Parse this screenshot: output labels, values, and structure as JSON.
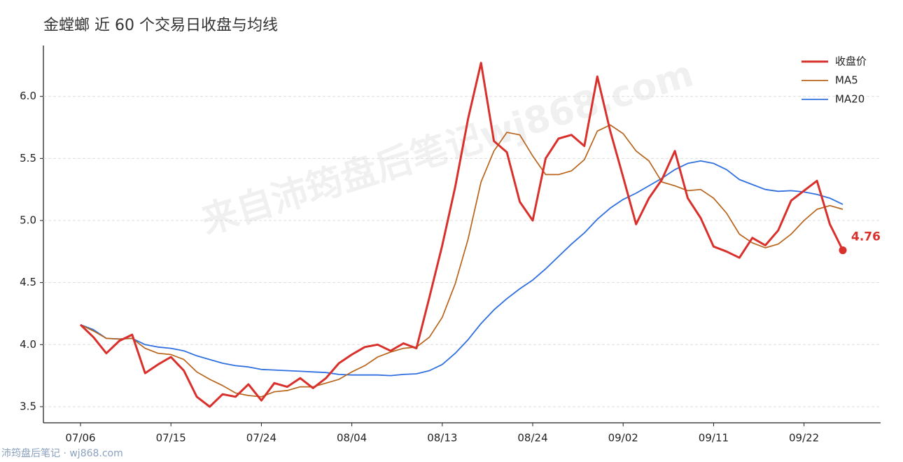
{
  "chart_data": {
    "type": "line",
    "title": "金螳螂 近 60 个交易日收盘与均线",
    "watermark": "来自沛筠盘后笔记wj868.com",
    "footer": "沛筠盘后笔记 · wj868.com",
    "categories": [
      "07/06",
      null,
      null,
      null,
      null,
      null,
      null,
      "07/15",
      null,
      null,
      null,
      null,
      null,
      null,
      "07/24",
      null,
      null,
      null,
      null,
      null,
      null,
      "08/04",
      null,
      null,
      null,
      null,
      null,
      null,
      "08/13",
      null,
      null,
      null,
      null,
      null,
      null,
      "08/24",
      null,
      null,
      null,
      null,
      null,
      null,
      "09/02",
      null,
      null,
      null,
      null,
      null,
      null,
      "09/11",
      null,
      null,
      null,
      null,
      null,
      null,
      "09/22",
      null,
      null,
      null
    ],
    "series": [
      {
        "name": "收盘价",
        "color": "#d9302c",
        "values": [
          4.16,
          4.06,
          3.93,
          4.03,
          4.08,
          3.77,
          3.84,
          3.9,
          3.79,
          3.58,
          3.5,
          3.6,
          3.58,
          3.68,
          3.55,
          3.69,
          3.66,
          3.73,
          3.65,
          3.73,
          3.85,
          3.92,
          3.98,
          4.0,
          3.95,
          4.01,
          3.97,
          4.38,
          4.8,
          5.27,
          5.82,
          6.27,
          5.64,
          5.55,
          5.15,
          5.0,
          5.5,
          5.66,
          5.69,
          5.6,
          6.16,
          5.72,
          5.35,
          4.97,
          5.18,
          5.33,
          5.56,
          5.18,
          5.02,
          4.79,
          4.75,
          4.7,
          4.86,
          4.8,
          4.92,
          5.16,
          5.24,
          5.32,
          4.97,
          4.76
        ]
      },
      {
        "name": "MA5",
        "color": "#b8641a",
        "values": [
          4.16,
          4.11,
          4.05,
          4.045,
          4.05,
          3.97,
          3.93,
          3.92,
          3.88,
          3.78,
          3.72,
          3.67,
          3.61,
          3.59,
          3.58,
          3.62,
          3.63,
          3.66,
          3.66,
          3.69,
          3.72,
          3.78,
          3.83,
          3.9,
          3.94,
          3.97,
          3.98,
          4.06,
          4.22,
          4.49,
          4.85,
          5.31,
          5.56,
          5.71,
          5.69,
          5.52,
          5.37,
          5.37,
          5.4,
          5.49,
          5.72,
          5.77,
          5.7,
          5.56,
          5.48,
          5.31,
          5.28,
          5.24,
          5.25,
          5.18,
          5.06,
          4.89,
          4.82,
          4.78,
          4.81,
          4.89,
          5.0,
          5.09,
          5.12,
          5.09
        ]
      },
      {
        "name": "MA20",
        "color": "#2f6fe0",
        "values": [
          4.16,
          4.12,
          4.05,
          4.045,
          4.05,
          4.0,
          3.98,
          3.97,
          3.95,
          3.91,
          3.88,
          3.85,
          3.83,
          3.82,
          3.8,
          3.795,
          3.79,
          3.785,
          3.78,
          3.775,
          3.76,
          3.755,
          3.755,
          3.755,
          3.75,
          3.76,
          3.765,
          3.79,
          3.84,
          3.93,
          4.04,
          4.17,
          4.28,
          4.37,
          4.45,
          4.52,
          4.61,
          4.71,
          4.81,
          4.9,
          5.01,
          5.1,
          5.17,
          5.22,
          5.28,
          5.34,
          5.41,
          5.46,
          5.48,
          5.46,
          5.41,
          5.33,
          5.29,
          5.25,
          5.235,
          5.24,
          5.23,
          5.21,
          5.18,
          5.13
        ]
      }
    ],
    "ylim": [
      3.37,
      6.41
    ],
    "yticks": [
      3.5,
      {
        "value": 4.0,
        "label": "4.0"
      },
      4.5,
      {
        "value": 5.0,
        "label": "5.0"
      },
      5.5,
      {
        "value": 6.0,
        "label": "6.0"
      }
    ],
    "grid": true,
    "legend": "upper right"
  }
}
